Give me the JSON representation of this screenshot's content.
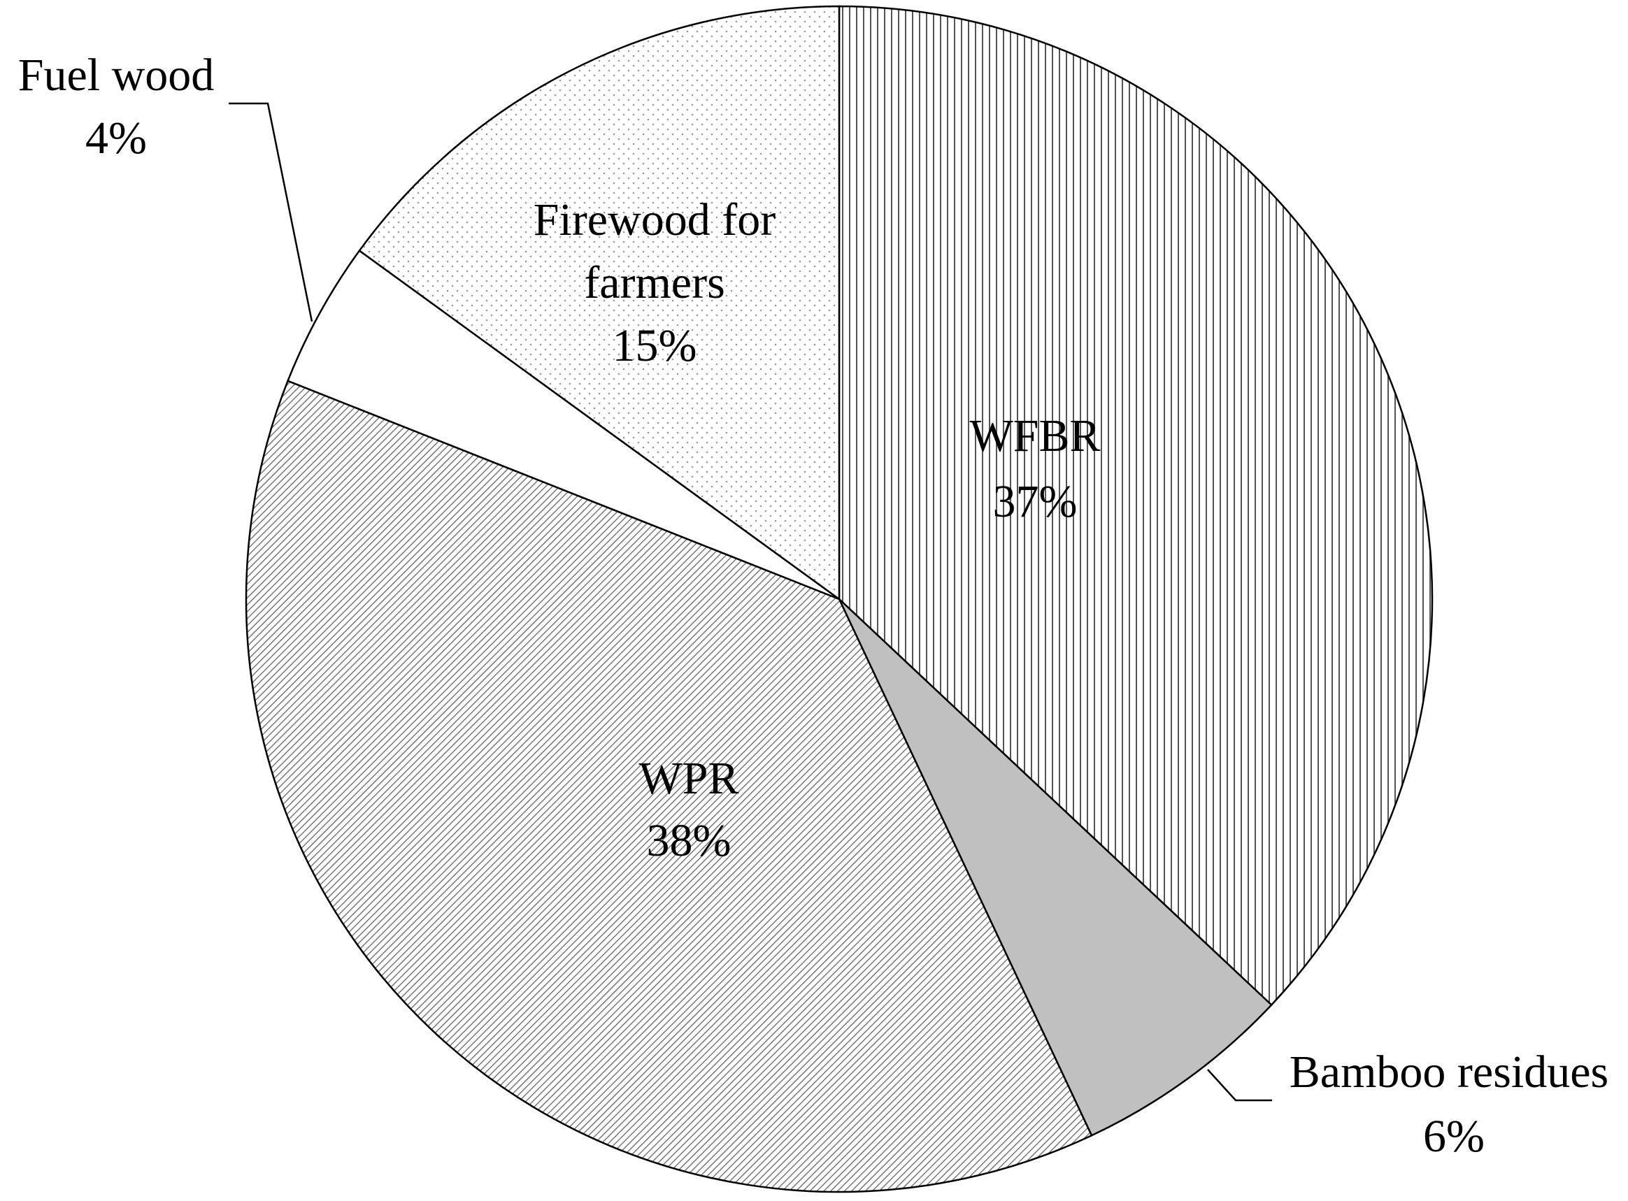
{
  "chart_data": {
    "type": "pie",
    "categories": [
      "WFBR",
      "Bamboo residues",
      "WPR",
      "Fuel wood",
      "Firewood for farmers"
    ],
    "values": [
      37,
      6,
      38,
      4,
      15
    ],
    "value_labels": [
      "37%",
      "6%",
      "38%",
      "4%",
      "15%"
    ],
    "colors": [
      "#ffffff",
      "#c0c0c0",
      "#ffffff",
      "#ffffff",
      "#ffffff"
    ],
    "patterns": [
      "vertical-lines",
      "none",
      "diagonal-lines",
      "none",
      "dots"
    ]
  }
}
